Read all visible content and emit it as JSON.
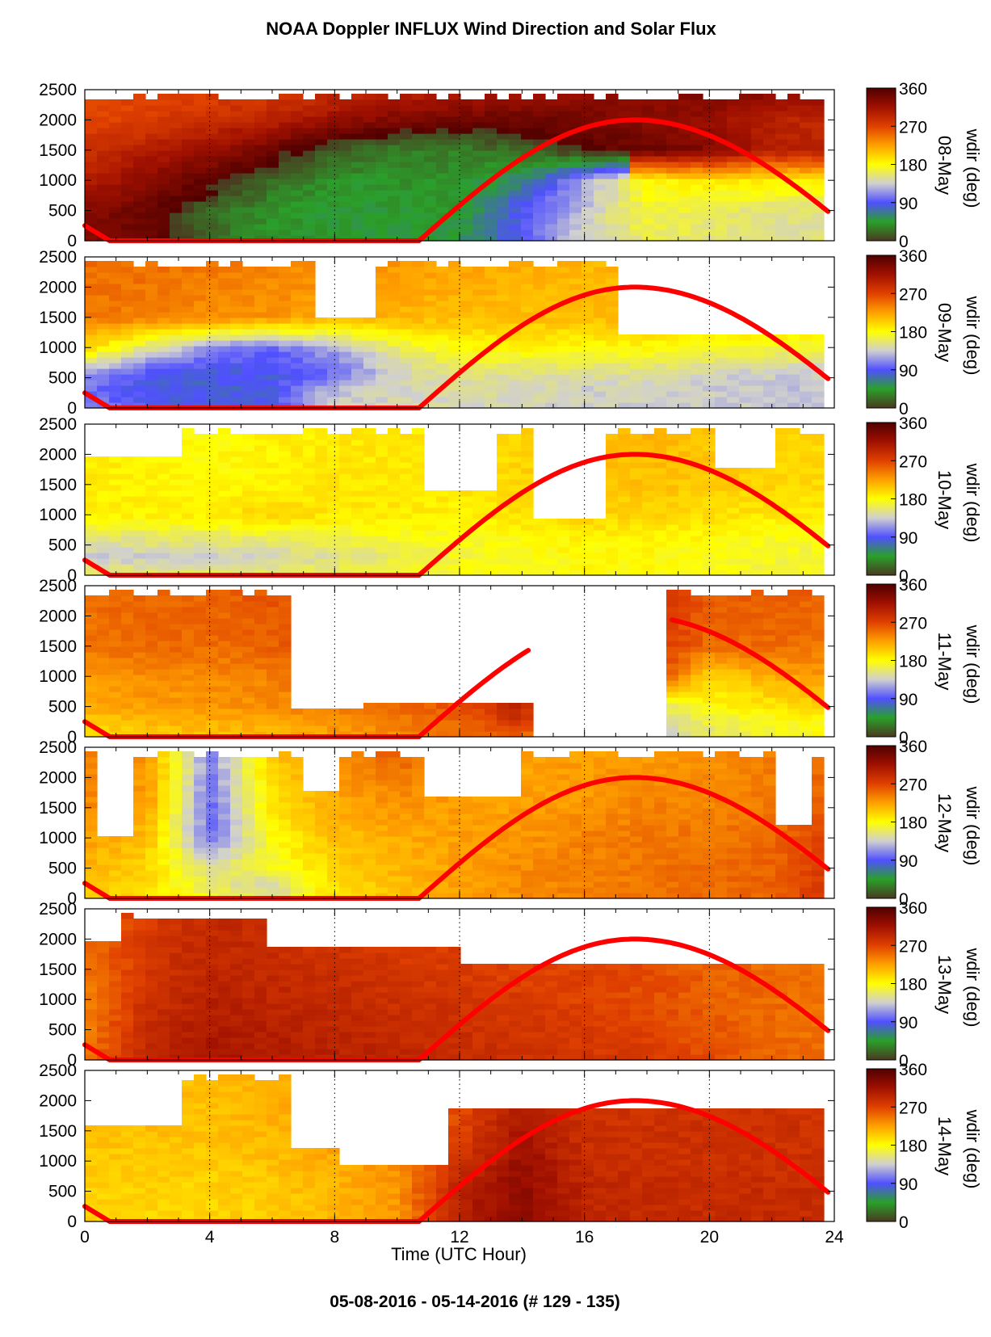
{
  "chart_data": {
    "type": "heatmap",
    "title": "NOAA Doppler INFLUX Wind Direction and Solar Flux",
    "footer": "05-08-2016 - 05-14-2016   (# 129 - 135)",
    "xlabel": "Time (UTC Hour)",
    "xlim": [
      0,
      24
    ],
    "xticks": [
      "0",
      "4",
      "8",
      "12",
      "16",
      "20",
      "24"
    ],
    "ylim": [
      0,
      2500
    ],
    "yticks": [
      "0",
      "500",
      "1000",
      "1500",
      "2000",
      "2500"
    ],
    "colorbar": {
      "label": "wdir (deg)",
      "ticks": [
        "0",
        "90",
        "180",
        "270",
        "360"
      ],
      "colors": [
        "#4a3a20",
        "#2aa02a",
        "#5050ff",
        "#d0d0d0",
        "#ffff00",
        "#ffa000",
        "#e04000",
        "#a01000",
        "#500000"
      ]
    },
    "solar_flux_color": "#ff0000",
    "panels": [
      {
        "day": "08-May",
        "gaps": [],
        "curve_end": 24,
        "rows": [
          {
            "y": 2500,
            "dirs": [
              265,
              265,
              270,
              275,
              285,
              295,
              300,
              305,
              315,
              330,
              335,
              330,
              320
            ]
          },
          {
            "y": 2000,
            "dirs": [
              270,
              275,
              285,
              300,
              320,
              335,
              345,
              345,
              340,
              330,
              320,
              300,
              290
            ]
          },
          {
            "y": 1500,
            "dirs": [
              285,
              300,
              320,
              345,
              15,
              30,
              30,
              20,
              355,
              345,
              330,
              300,
              300
            ]
          },
          {
            "y": 1000,
            "dirs": [
              300,
              330,
              350,
              20,
              40,
              40,
              40,
              60,
              120,
              180,
              190,
              190,
              190
            ]
          },
          {
            "y": 500,
            "dirs": [
              330,
              345,
              20,
              40,
              45,
              45,
              45,
              90,
              130,
              170,
              160,
              150,
              150
            ]
          },
          {
            "y": 0,
            "dirs": [
              330,
              345,
              20,
              40,
              45,
              45,
              50,
              90,
              140,
              160,
              155,
              150,
              150
            ]
          }
        ]
      },
      {
        "day": "09-May",
        "gaps": [
          [
            7.5,
            9.5,
            1500,
            2500
          ],
          [
            17,
            24,
            1200,
            2500
          ]
        ],
        "curve_end": 24,
        "rows": [
          {
            "y": 2500,
            "dirs": [
              250,
              250,
              245,
              240,
              235,
              230,
              225,
              220,
              215,
              215,
              210,
              210,
              210
            ]
          },
          {
            "y": 1500,
            "dirs": [
              245,
              240,
              235,
              230,
              220,
              215,
              210,
              210,
              210,
              215,
              215,
              210,
              210
            ]
          },
          {
            "y": 1000,
            "dirs": [
              200,
              150,
              110,
              100,
              120,
              160,
              180,
              185,
              180,
              180,
              175,
              170,
              170
            ]
          },
          {
            "y": 600,
            "dirs": [
              120,
              90,
              85,
              85,
              100,
              140,
              150,
              150,
              150,
              150,
              140,
              135,
              135
            ]
          },
          {
            "y": 300,
            "dirs": [
              100,
              85,
              80,
              85,
              130,
              140,
              145,
              140,
              135,
              135,
              135,
              130,
              130
            ]
          },
          {
            "y": 0,
            "dirs": [
              110,
              90,
              85,
              90,
              135,
              140,
              140,
              140,
              135,
              135,
              135,
              130,
              130
            ]
          }
        ]
      },
      {
        "day": "10-May",
        "gaps": [
          [
            0,
            3,
            2000,
            2500
          ],
          [
            11,
            13,
            1400,
            2500
          ],
          [
            14.5,
            16.5,
            900,
            2400
          ],
          [
            20,
            22,
            1800,
            2500
          ]
        ],
        "curve_end": 24,
        "rows": [
          {
            "y": 2500,
            "dirs": [
              190,
              185,
              180,
              185,
              190,
              190,
              190,
              200,
              210,
              215,
              210,
              205,
              200
            ]
          },
          {
            "y": 1500,
            "dirs": [
              190,
              185,
              180,
              185,
              190,
              190,
              190,
              200,
              205,
              210,
              205,
              200,
              195
            ]
          },
          {
            "y": 1000,
            "dirs": [
              185,
              185,
              190,
              200,
              190,
              190,
              185,
              195,
              200,
              200,
              195,
              190,
              190
            ]
          },
          {
            "y": 600,
            "dirs": [
              150,
              155,
              155,
              160,
              165,
              170,
              175,
              180,
              185,
              185,
              180,
              175,
              175
            ]
          },
          {
            "y": 300,
            "dirs": [
              130,
              135,
              135,
              140,
              150,
              160,
              170,
              175,
              180,
              180,
              175,
              170,
              170
            ]
          },
          {
            "y": 0,
            "dirs": [
              160,
              160,
              160,
              160,
              165,
              170,
              175,
              178,
              180,
              180,
              175,
              170,
              170
            ]
          }
        ]
      },
      {
        "day": "11-May",
        "gaps": [
          [
            6.5,
            9,
            500,
            2500
          ],
          [
            9,
            12,
            600,
            2500
          ],
          [
            14.5,
            18.8,
            0,
            2500
          ],
          [
            12,
            14.5,
            600,
            2500
          ]
        ],
        "curve_end": 14.2,
        "curve_start2": 18.8,
        "rows": [
          {
            "y": 2500,
            "dirs": [
              250,
              255,
              255,
              260,
              270,
              280,
              285,
              290,
              295,
              290,
              260,
              260,
              255
            ]
          },
          {
            "y": 1500,
            "dirs": [
              245,
              250,
              250,
              255,
              275,
              290,
              280,
              280,
              280,
              280,
              250,
              250,
              245
            ]
          },
          {
            "y": 1000,
            "dirs": [
              230,
              235,
              235,
              240,
              250,
              260,
              265,
              270,
              280,
              280,
              200,
              220,
              230
            ]
          },
          {
            "y": 500,
            "dirs": [
              220,
              225,
              230,
              235,
              240,
              250,
              260,
              300,
              150,
              150,
              180,
              190,
              200
            ]
          },
          {
            "y": 200,
            "dirs": [
              200,
              210,
              215,
              220,
              230,
              240,
              250,
              280,
              120,
              130,
              160,
              170,
              180
            ]
          },
          {
            "y": 0,
            "dirs": [
              200,
              205,
              210,
              215,
              225,
              235,
              245,
              260,
              120,
              130,
              160,
              170,
              180
            ]
          }
        ]
      },
      {
        "day": "12-May",
        "gaps": [
          [
            0.5,
            1.5,
            1000,
            2500
          ],
          [
            7,
            8,
            1800,
            2500
          ],
          [
            11,
            14,
            1700,
            2500
          ],
          [
            22,
            23.3,
            1200,
            2500
          ]
        ],
        "curve_end": 24,
        "rows": [
          {
            "y": 2500,
            "dirs": [
              240,
              230,
              110,
              210,
              230,
              260,
              230,
              225,
              225,
              225,
              230,
              240,
              250
            ]
          },
          {
            "y": 1500,
            "dirs": [
              235,
              225,
              100,
              190,
              220,
              230,
              225,
              225,
              230,
              240,
              240,
              245,
              260
            ]
          },
          {
            "y": 1000,
            "dirs": [
              225,
              210,
              100,
              180,
              210,
              220,
              225,
              230,
              240,
              245,
              245,
              250,
              270
            ]
          },
          {
            "y": 500,
            "dirs": [
              215,
              200,
              150,
              170,
              200,
              215,
              225,
              235,
              240,
              245,
              250,
              255,
              280
            ]
          },
          {
            "y": 200,
            "dirs": [
              210,
              195,
              160,
              140,
              195,
              210,
              225,
              235,
              240,
              245,
              250,
              255,
              285
            ]
          },
          {
            "y": 0,
            "dirs": [
              210,
              195,
              170,
              150,
              195,
              210,
              225,
              235,
              240,
              245,
              250,
              255,
              285
            ]
          }
        ]
      },
      {
        "day": "13-May",
        "gaps": [
          [
            0,
            1.2,
            2000,
            2500
          ],
          [
            3,
            6,
            2300,
            2500
          ],
          [
            6,
            12,
            1900,
            2500
          ],
          [
            12,
            24,
            1550,
            2500
          ]
        ],
        "curve_end": 24,
        "rows": [
          {
            "y": 2500,
            "dirs": [
              250,
              275,
              290,
              285,
              280,
              275,
              270,
              270,
              270,
              270,
              260,
              255,
              255
            ]
          },
          {
            "y": 1500,
            "dirs": [
              245,
              280,
              295,
              290,
              285,
              280,
              275,
              270,
              270,
              265,
              255,
              250,
              245
            ]
          },
          {
            "y": 1000,
            "dirs": [
              240,
              285,
              300,
              295,
              290,
              285,
              280,
              275,
              270,
              265,
              255,
              250,
              245
            ]
          },
          {
            "y": 500,
            "dirs": [
              240,
              290,
              305,
              300,
              295,
              290,
              285,
              280,
              275,
              270,
              260,
              250,
              245
            ]
          },
          {
            "y": 0,
            "dirs": [
              245,
              295,
              310,
              305,
              300,
              295,
              290,
              285,
              280,
              275,
              265,
              255,
              250
            ]
          }
        ]
      },
      {
        "day": "14-May",
        "gaps": [
          [
            0,
            3,
            1600,
            2500
          ],
          [
            3,
            3.2,
            2200,
            2500
          ],
          [
            6.5,
            8,
            1200,
            2500
          ],
          [
            8,
            11.5,
            900,
            2500
          ],
          [
            11.5,
            24,
            1900,
            2500
          ]
        ],
        "curve_end": 24,
        "rows": [
          {
            "y": 2500,
            "dirs": [
              215,
              215,
              210,
              220,
              225,
              230,
              260,
              300,
              280,
              280,
              280,
              280,
              280
            ]
          },
          {
            "y": 1500,
            "dirs": [
              210,
              210,
              210,
              215,
              225,
              235,
              270,
              310,
              285,
              285,
              285,
              285,
              285
            ]
          },
          {
            "y": 1000,
            "dirs": [
              205,
              205,
              205,
              210,
              220,
              235,
              280,
              320,
              290,
              285,
              285,
              285,
              285
            ]
          },
          {
            "y": 500,
            "dirs": [
              200,
              200,
              200,
              205,
              215,
              230,
              300,
              325,
              295,
              290,
              290,
              290,
              290
            ]
          },
          {
            "y": 0,
            "dirs": [
              200,
              200,
              200,
              205,
              215,
              230,
              300,
              325,
              295,
              290,
              290,
              290,
              290
            ]
          }
        ]
      }
    ]
  }
}
